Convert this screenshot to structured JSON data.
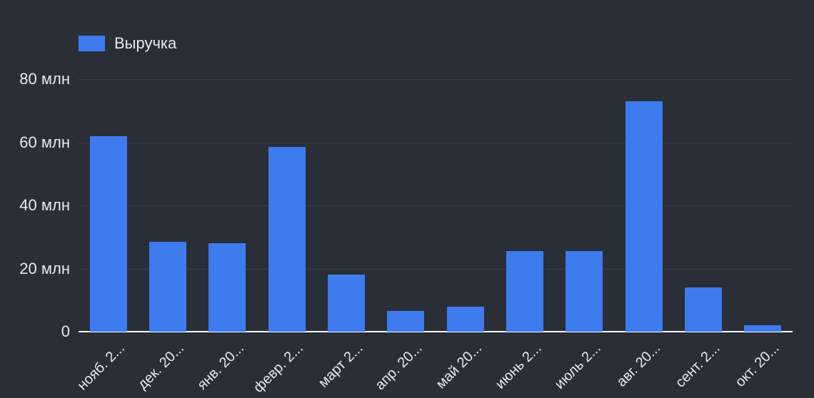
{
  "chart_data": {
    "type": "bar",
    "title": "",
    "series_name": "Выручка",
    "categories": [
      "нояб. 2...",
      "дек. 20...",
      "янв. 20...",
      "февр. 2...",
      "март 2...",
      "апр. 20...",
      "май 20...",
      "июнь 2...",
      "июль 2...",
      "авг. 20...",
      "сент. 2...",
      "окт. 20..."
    ],
    "values": [
      62,
      28.5,
      28,
      58.5,
      18,
      6.5,
      8,
      25.5,
      25.5,
      73,
      14,
      2
    ],
    "unit": "млн",
    "ylim": [
      0,
      80
    ],
    "yticks": [
      0,
      20,
      40,
      60,
      80
    ],
    "ytick_labels": [
      "0",
      "20 млн",
      "40 млн",
      "60 млн",
      "80 млн"
    ],
    "grid": true,
    "legend_position": "top-left"
  },
  "colors": {
    "background": "#2a2e37",
    "bar": "#3d7bee",
    "gridline": "#3b4049",
    "axis_text": "#e8eaed",
    "baseline": "#ffffff"
  }
}
